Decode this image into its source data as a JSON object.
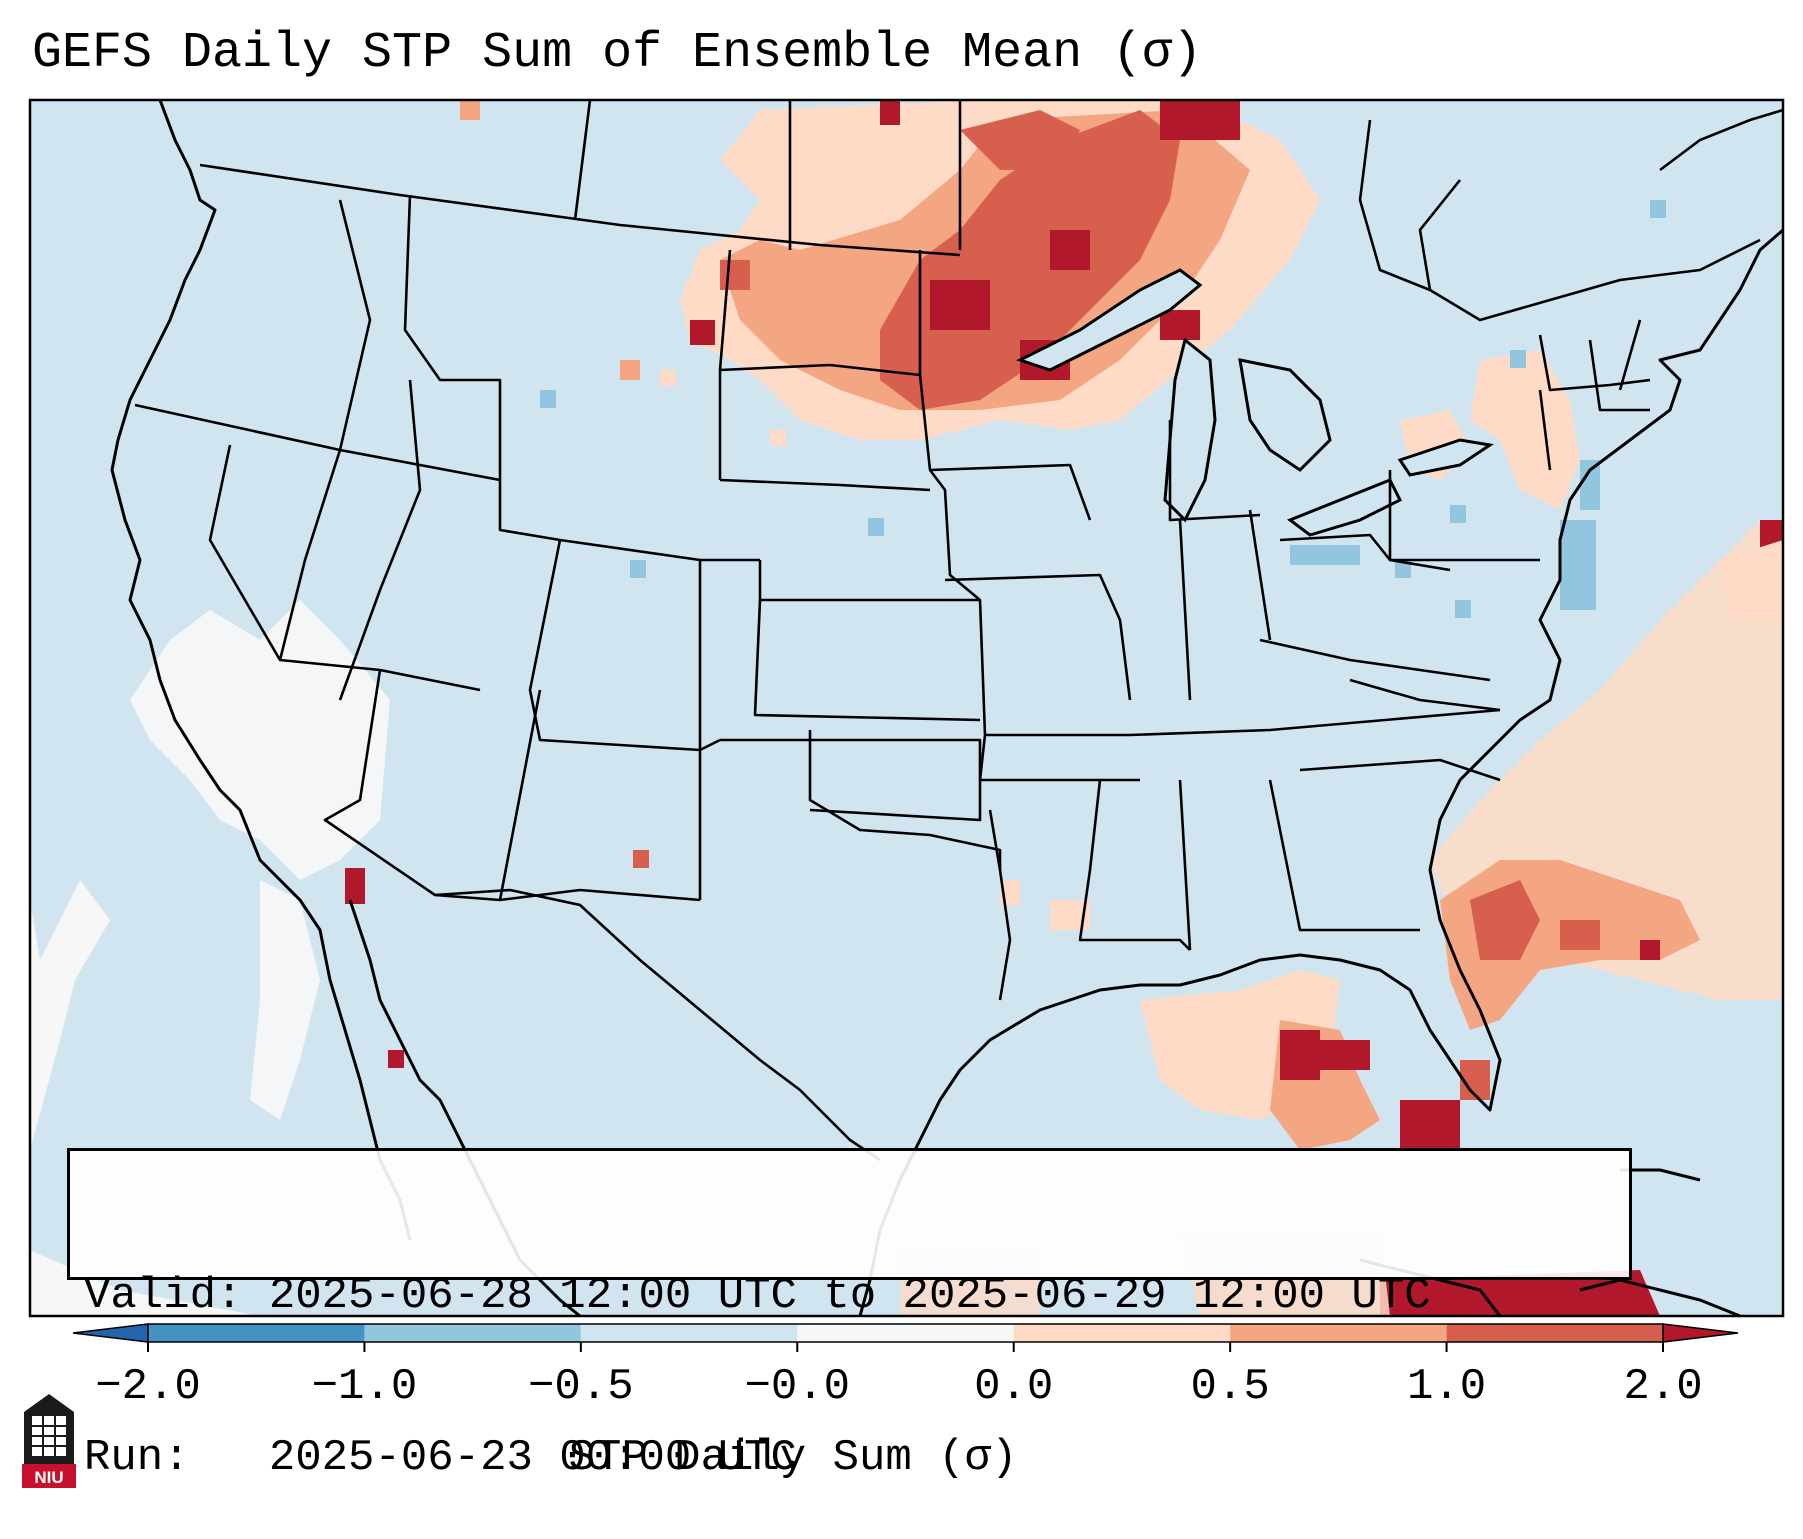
{
  "title": "GEFS Daily STP Sum of Ensemble Mean (σ)",
  "info": {
    "valid_label": "Valid:",
    "valid_value": "2025-06-28 12:00 UTC to 2025-06-29 12:00 UTC",
    "run_label": "Run:",
    "run_value": "2025-06-23 00:00 UTC"
  },
  "colorbar": {
    "title": "STP Daily Sum (σ)",
    "tick_labels": [
      "−2.0",
      "−1.0",
      "−0.5",
      "−0.0",
      "0.0",
      "0.5",
      "1.0",
      "2.0"
    ],
    "bins": [
      {
        "range": "< -2.0",
        "color": "#2166ac"
      },
      {
        "range": "-2.0 to -1.0",
        "color": "#4393c3"
      },
      {
        "range": "-1.0 to -0.5",
        "color": "#92c5de"
      },
      {
        "range": "-0.5 to -0.0",
        "color": "#d1e5f0"
      },
      {
        "range": "-0.0 to 0.0",
        "color": "#f7f7f7"
      },
      {
        "range": "0.0 to 0.5",
        "color": "#fddbc7"
      },
      {
        "range": "0.5 to 1.0",
        "color": "#f4a582"
      },
      {
        "range": "1.0 to 2.0",
        "color": "#d6604d"
      },
      {
        "range": "> 2.0",
        "color": "#b2182b"
      }
    ]
  },
  "map": {
    "background_color": "#d1e5f0",
    "region": "Contiguous United States",
    "features": [
      "state borders",
      "coastlines",
      "Great Lakes"
    ]
  },
  "logo": {
    "text": "NIU",
    "color": "#c8102e"
  }
}
